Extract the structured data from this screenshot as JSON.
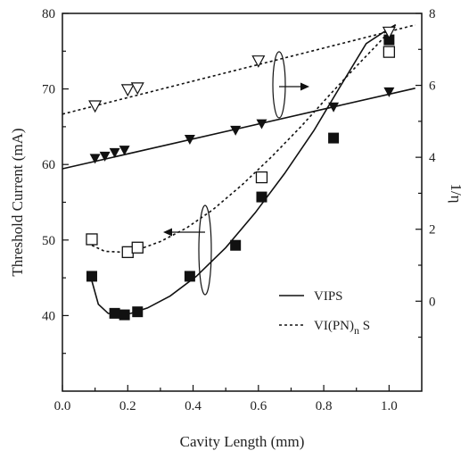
{
  "chart_data": {
    "type": "scatter",
    "xlabel": "Cavity Length (mm)",
    "ylabel": "Threshold Current (mA)",
    "y2label": "1/η",
    "xlim": [
      0.0,
      1.1
    ],
    "ylim": [
      30,
      80
    ],
    "y2lim": [
      -2.5,
      8
    ],
    "x_ticks": [
      "0.0",
      "0.2",
      "0.4",
      "0.6",
      "0.8",
      "1.0"
    ],
    "y_ticks": [
      "40",
      "50",
      "60",
      "70",
      "80"
    ],
    "y2_ticks": [
      "0",
      "2",
      "4",
      "6",
      "8"
    ],
    "legend": [
      {
        "label": "VIPS",
        "style": "solid"
      },
      {
        "label": "VI(PN)n S",
        "style": "dashed"
      }
    ],
    "series": [
      {
        "marker": "filled-square",
        "axis": "left",
        "fit": "solid",
        "x": [
          0.09,
          0.16,
          0.19,
          0.23,
          0.39,
          0.53,
          0.61,
          0.83,
          1.0
        ],
        "y": [
          45.2,
          40.3,
          40.1,
          40.5,
          45.2,
          49.3,
          55.7,
          63.5,
          76.5
        ]
      },
      {
        "marker": "open-square",
        "axis": "left",
        "fit": "dashed",
        "x": [
          0.09,
          0.2,
          0.23,
          0.61,
          1.0
        ],
        "y": [
          50.1,
          48.4,
          49.0,
          58.3,
          74.9
        ]
      },
      {
        "marker": "filled-triangle-down",
        "axis": "right",
        "fit": "solid",
        "x": [
          0.1,
          0.13,
          0.16,
          0.19,
          0.39,
          0.53,
          0.61,
          0.83,
          1.0
        ],
        "y": [
          3.97,
          4.03,
          4.13,
          4.2,
          4.5,
          4.75,
          4.93,
          5.4,
          5.82
        ]
      },
      {
        "marker": "open-triangle-down",
        "axis": "right",
        "fit": "dashed",
        "x": [
          0.1,
          0.2,
          0.23,
          0.6,
          1.0
        ],
        "y": [
          5.43,
          5.88,
          5.93,
          6.68,
          7.48
        ]
      }
    ],
    "fits": [
      {
        "axis": "left",
        "style": "solid",
        "x": [
          0.09,
          0.11,
          0.14,
          0.17,
          0.21,
          0.26,
          0.33,
          0.41,
          0.5,
          0.59,
          0.68,
          0.77,
          0.85,
          0.93,
          1.0,
          1.02
        ],
        "y": [
          44.6,
          41.5,
          40.3,
          40.1,
          40.3,
          41.0,
          42.6,
          45.2,
          49.0,
          53.6,
          58.8,
          64.5,
          70.3,
          76.0,
          78.0,
          78.5
        ]
      },
      {
        "axis": "left",
        "style": "dashed",
        "x": [
          0.09,
          0.13,
          0.18,
          0.23,
          0.3,
          0.38,
          0.46,
          0.55,
          0.64,
          0.73,
          0.82,
          0.9,
          0.96,
          1.02
        ],
        "y": [
          49.3,
          48.5,
          48.4,
          48.7,
          49.8,
          51.6,
          54.0,
          57.3,
          61.0,
          65.0,
          69.3,
          73.0,
          75.7,
          78.5
        ]
      },
      {
        "axis": "right",
        "style": "solid",
        "x": [
          0.0,
          1.08
        ],
        "y": [
          3.68,
          5.92
        ]
      },
      {
        "axis": "right",
        "style": "dashed",
        "x": [
          0.0,
          1.08
        ],
        "y": [
          5.2,
          7.68
        ]
      }
    ],
    "arrows": [
      {
        "direction": "right",
        "target_axis": "right",
        "annotation": "open ellipse"
      },
      {
        "direction": "left",
        "target_axis": "left",
        "annotation": "open ellipse"
      }
    ]
  }
}
